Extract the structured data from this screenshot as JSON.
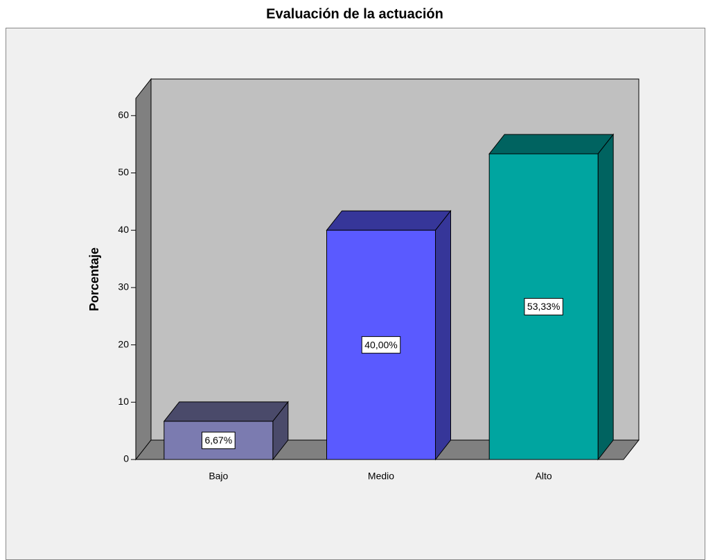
{
  "chart_data": {
    "type": "bar3d",
    "title": "Evaluación de la actuación",
    "ylabel": "Porcentaje",
    "categories": [
      "Bajo",
      "Medio",
      "Alto"
    ],
    "values": [
      6.67,
      40,
      53.33
    ],
    "value_labels": [
      "6,67%",
      "40,00%",
      "53,33%"
    ],
    "colors": [
      "#7b7bb0",
      "#5a5aff",
      "#00a5a0"
    ],
    "ylim": [
      0,
      63
    ],
    "yticks": [
      0,
      10,
      20,
      30,
      40,
      50,
      60
    ]
  }
}
